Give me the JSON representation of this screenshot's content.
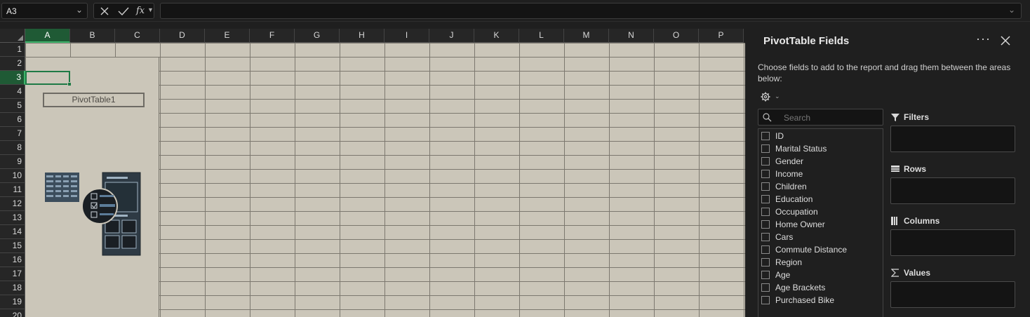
{
  "formula_bar": {
    "name_box": "A3",
    "fx_label": "fx",
    "formula": ""
  },
  "sheet": {
    "columns": [
      "A",
      "B",
      "C",
      "D",
      "E",
      "F",
      "G",
      "H",
      "I",
      "J",
      "K",
      "L",
      "M",
      "N",
      "O",
      "P"
    ],
    "rows": [
      "1",
      "2",
      "3",
      "4",
      "5",
      "6",
      "7",
      "8",
      "9",
      "10",
      "11",
      "12",
      "13",
      "14",
      "15",
      "16",
      "17",
      "18",
      "19",
      "20"
    ],
    "selected_column": "A",
    "selected_row": "3",
    "pivot_name": "PivotTable1"
  },
  "panel": {
    "title": "PivotTable Fields",
    "description": "Choose fields to add to the report and drag them between the areas below:",
    "search_placeholder": "Search",
    "fields": [
      "ID",
      "Marital Status",
      "Gender",
      "Income",
      "Children",
      "Education",
      "Occupation",
      "Home Owner",
      "Cars",
      "Commute Distance",
      "Region",
      "Age",
      "Age Brackets",
      "Purchased Bike"
    ],
    "areas": {
      "filters": "Filters",
      "rows": "Rows",
      "columns": "Columns",
      "values": "Values"
    }
  },
  "colors": {
    "cell_bg": "#cbc6b9",
    "accent": "#1e7a45",
    "panel_bg": "#1f1f1f"
  }
}
